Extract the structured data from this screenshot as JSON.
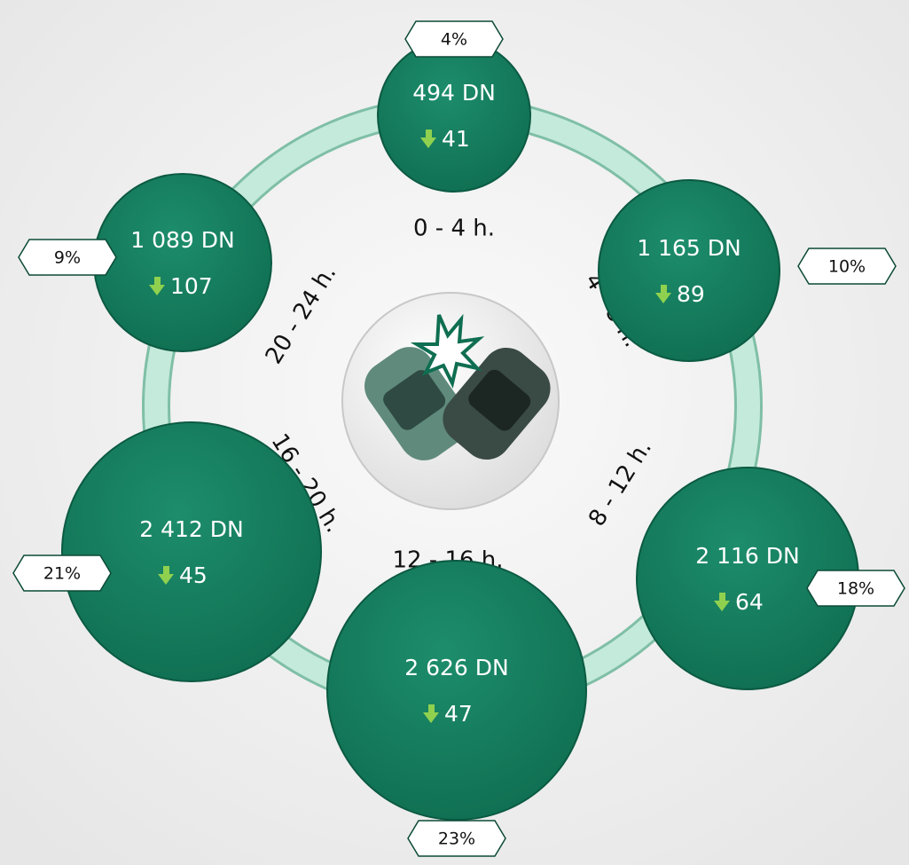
{
  "nodes": [
    {
      "label": "494 DN",
      "change": "41",
      "share": "4%"
    },
    {
      "label": "1 165 DN",
      "change": "89",
      "share": "10%"
    },
    {
      "label": "2 116 DN",
      "change": "64",
      "share": "18%"
    },
    {
      "label": "2 626 DN",
      "change": "47",
      "share": "23%"
    },
    {
      "label": "2 412 DN",
      "change": "45",
      "share": "21%"
    },
    {
      "label": "1 089 DN",
      "change": "107",
      "share": "9%"
    }
  ],
  "periods": [
    "0 - 4 h.",
    "4 - 8 h.",
    "8 - 12 h.",
    "12 - 16 h.",
    "16 - 20 h.",
    "20 - 24 h."
  ]
}
